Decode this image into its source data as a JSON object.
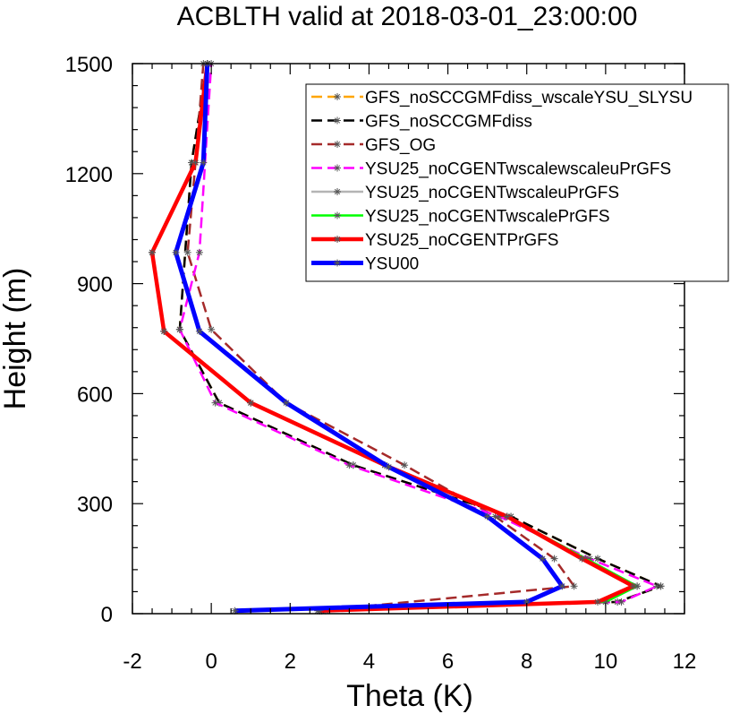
{
  "chart_data": {
    "type": "line",
    "title": "ACBLTH valid at 2018-03-01_23:00:00",
    "xlabel": "Theta (K)",
    "ylabel": "Height (m)",
    "xlim": [
      -2,
      12
    ],
    "ylim": [
      0,
      1500
    ],
    "xticks": [
      "-2",
      "0",
      "2",
      "4",
      "6",
      "8",
      "10",
      "12"
    ],
    "yticks": [
      "0",
      "300",
      "600",
      "900",
      "1200",
      "1500"
    ],
    "grid": false,
    "legend_position": "top-right",
    "series": [
      {
        "name": "GFS_noSCCGMFdiss_wscaleYSU_SLYSU",
        "color": "#ffa500",
        "dash": "dash",
        "marker": "asterisk",
        "x": [
          2.8,
          10.3,
          11.4,
          9.8,
          7.6,
          3.6,
          0.2,
          -0.8,
          -0.5,
          -0.1
        ],
        "y": [
          8,
          32,
          75,
          150,
          265,
          405,
          575,
          775,
          1230,
          1500
        ]
      },
      {
        "name": "GFS_noSCCGMFdiss",
        "color": "#000000",
        "dash": "dash",
        "marker": "asterisk",
        "x": [
          2.8,
          10.3,
          11.4,
          9.8,
          7.6,
          3.6,
          0.2,
          -0.8,
          -0.5,
          -0.1
        ],
        "y": [
          8,
          32,
          75,
          150,
          265,
          405,
          575,
          775,
          1230,
          1500
        ]
      },
      {
        "name": "GFS_OG",
        "color": "#a52a2a",
        "dash": "dash",
        "marker": "asterisk",
        "x": [
          2.7,
          9.2,
          8.7,
          7.2,
          4.9,
          1.9,
          0.0,
          -0.6,
          -0.4,
          -0.2
        ],
        "y": [
          8,
          75,
          150,
          265,
          405,
          575,
          775,
          985,
          1230,
          1500
        ]
      },
      {
        "name": "YSU25_noCGENTwscalewscaleuPrGFS",
        "color": "#ff00ff",
        "dash": "dash",
        "marker": "asterisk",
        "x": [
          2.9,
          10.4,
          11.3,
          9.6,
          7.3,
          3.5,
          0.1,
          -0.8,
          -0.3,
          0.0
        ],
        "y": [
          8,
          32,
          75,
          150,
          265,
          405,
          575,
          775,
          985,
          1500
        ]
      },
      {
        "name": "YSU25_noCGENTwscaleuPrGFS",
        "color": "#b4b4b4",
        "dash": "solid",
        "marker": "asterisk",
        "x": [
          2.75,
          10.0,
          10.8,
          9.5,
          7.5,
          4.4,
          1.0,
          -1.2,
          -1.5,
          -0.4,
          -0.1
        ],
        "y": [
          8,
          32,
          75,
          150,
          265,
          405,
          575,
          770,
          985,
          1230,
          1500
        ]
      },
      {
        "name": "YSU25_noCGENTwscalePrGFS",
        "color": "#00ff00",
        "dash": "solid",
        "marker": "asterisk",
        "x": [
          2.75,
          10.0,
          10.8,
          9.5,
          7.5,
          4.4,
          1.0,
          -1.2,
          -1.5,
          -0.4,
          -0.1
        ],
        "y": [
          8,
          32,
          75,
          150,
          265,
          405,
          575,
          770,
          985,
          1230,
          1500
        ]
      },
      {
        "name": "YSU25_noCGENTPrGFS",
        "color": "#ff0000",
        "dash": "solid",
        "marker": "asterisk",
        "x": [
          2.75,
          9.8,
          10.7,
          9.4,
          7.5,
          4.4,
          1.0,
          -1.2,
          -1.5,
          -0.4,
          -0.1
        ],
        "y": [
          8,
          32,
          75,
          150,
          265,
          405,
          575,
          770,
          985,
          1230,
          1500
        ]
      },
      {
        "name": "YSU00",
        "color": "#0000ff",
        "dash": "solid",
        "marker": "asterisk",
        "x": [
          0.6,
          8.0,
          8.9,
          8.4,
          7.0,
          4.5,
          1.9,
          -0.3,
          -0.9,
          -0.2,
          -0.1
        ],
        "y": [
          8,
          32,
          75,
          150,
          265,
          400,
          575,
          770,
          985,
          1230,
          1500
        ]
      }
    ]
  }
}
